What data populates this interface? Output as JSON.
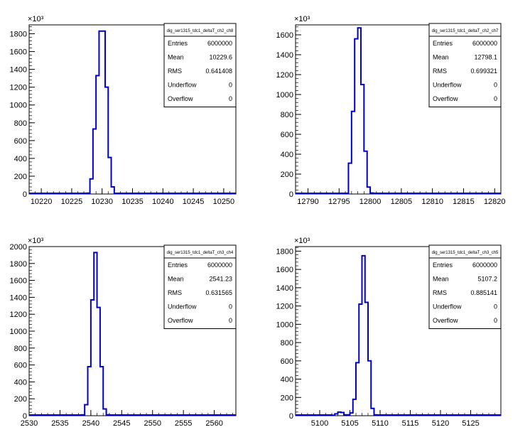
{
  "chart_data": [
    {
      "type": "histogram",
      "title": "dig_ser1315_tdc1_deltaT_ch2_ch8",
      "exponent_label": "×10³",
      "xlim": [
        10218,
        10252
      ],
      "ylim": [
        0,
        1900
      ],
      "x_ticks": [
        "10220",
        "10225",
        "10230",
        "10235",
        "10240",
        "10245",
        "10250"
      ],
      "x_tick_values": [
        10220,
        10225,
        10230,
        10235,
        10240,
        10245,
        10250
      ],
      "y_ticks": [
        "0",
        "200",
        "400",
        "600",
        "800",
        "1000",
        "1200",
        "1400",
        "1600",
        "1800"
      ],
      "y_tick_values": [
        0,
        200,
        400,
        600,
        800,
        1000,
        1200,
        1400,
        1600,
        1800
      ],
      "bin_edges": [
        10227.5,
        10228,
        10228.5,
        10229,
        10229.5,
        10230,
        10230.5,
        10231,
        10231.5,
        10232
      ],
      "bin_values": [
        10,
        170,
        730,
        1330,
        1830,
        1830,
        1200,
        410,
        80
      ],
      "stats": [
        {
          "label": "Entries",
          "value": "6000000"
        },
        {
          "label": "Mean",
          "value": "10229.6"
        },
        {
          "label": "RMS",
          "value": "0.641408"
        },
        {
          "label": "Underflow",
          "value": "0"
        },
        {
          "label": "Overflow",
          "value": "0"
        }
      ]
    },
    {
      "type": "histogram",
      "title": "dig_ser1315_tdc1_deltaT_ch2_ch7",
      "exponent_label": "×10³",
      "xlim": [
        12788,
        12821
      ],
      "ylim": [
        0,
        1700
      ],
      "x_ticks": [
        "12790",
        "12795",
        "12800",
        "12805",
        "12810",
        "12815",
        "12820"
      ],
      "x_tick_values": [
        12790,
        12795,
        12800,
        12805,
        12810,
        12815,
        12820
      ],
      "y_ticks": [
        "0",
        "200",
        "400",
        "600",
        "800",
        "1000",
        "1200",
        "1400",
        "1600"
      ],
      "y_tick_values": [
        0,
        200,
        400,
        600,
        800,
        1000,
        1200,
        1400,
        1600
      ],
      "bin_edges": [
        12796.5,
        12797,
        12797.5,
        12798,
        12798.5,
        12799,
        12799.5,
        12800,
        12800.5
      ],
      "bin_values": [
        310,
        830,
        1560,
        1670,
        1100,
        430,
        70,
        10
      ],
      "stats": [
        {
          "label": "Entries",
          "value": "6000000"
        },
        {
          "label": "Mean",
          "value": "12798.1"
        },
        {
          "label": "RMS",
          "value": "0.699321"
        },
        {
          "label": "Underflow",
          "value": "0"
        },
        {
          "label": "Overflow",
          "value": "0"
        }
      ]
    },
    {
      "type": "histogram",
      "title": "dig_ser1315_tdc1_deltaT_ch3_ch4",
      "exponent_label": "×10³",
      "xlim": [
        2530,
        2563.5
      ],
      "ylim": [
        0,
        2000
      ],
      "x_ticks": [
        "2530",
        "2535",
        "2540",
        "2545",
        "2550",
        "2555",
        "2560"
      ],
      "x_tick_values": [
        2530,
        2535,
        2540,
        2545,
        2550,
        2555,
        2560
      ],
      "y_ticks": [
        "0",
        "200",
        "400",
        "600",
        "800",
        "1000",
        "1200",
        "1400",
        "1600",
        "1800",
        "2000"
      ],
      "y_tick_values": [
        0,
        200,
        400,
        600,
        800,
        1000,
        1200,
        1400,
        1600,
        1800,
        2000
      ],
      "bin_edges": [
        2538.5,
        2539,
        2539.5,
        2540,
        2540.5,
        2541,
        2541.5,
        2542,
        2542.5,
        2543
      ],
      "bin_values": [
        10,
        130,
        580,
        1370,
        1930,
        1280,
        580,
        80,
        10
      ],
      "stats": [
        {
          "label": "Entries",
          "value": "6000000"
        },
        {
          "label": "Mean",
          "value": "2541.23"
        },
        {
          "label": "RMS",
          "value": "0.631565"
        },
        {
          "label": "Underflow",
          "value": "0"
        },
        {
          "label": "Overflow",
          "value": "0"
        }
      ]
    },
    {
      "type": "histogram",
      "title": "dig_ser1315_tdc1_deltaT_ch3_ch5",
      "exponent_label": "×10³",
      "xlim": [
        5096,
        5130
      ],
      "ylim": [
        0,
        1850
      ],
      "x_ticks": [
        "5100",
        "5105",
        "5110",
        "5115",
        "5120",
        "5125"
      ],
      "x_tick_values": [
        5100,
        5105,
        5110,
        5115,
        5120,
        5125
      ],
      "y_ticks": [
        "0",
        "200",
        "400",
        "600",
        "800",
        "1000",
        "1200",
        "1400",
        "1600",
        "1800"
      ],
      "y_tick_values": [
        0,
        200,
        400,
        600,
        800,
        1000,
        1200,
        1400,
        1600,
        1800
      ],
      "bin_edges": [
        5102,
        5102.5,
        5103,
        5103.5,
        5104,
        5104.5,
        5105,
        5105.5,
        5106,
        5106.5,
        5107,
        5107.5,
        5108,
        5108.5,
        5109,
        5109.5
      ],
      "bin_values": [
        5,
        20,
        40,
        35,
        10,
        10,
        30,
        180,
        580,
        1220,
        1750,
        1240,
        600,
        80,
        10
      ],
      "stats": [
        {
          "label": "Entries",
          "value": "6000000"
        },
        {
          "label": "Mean",
          "value": "5107.2"
        },
        {
          "label": "RMS",
          "value": "0.885141"
        },
        {
          "label": "Underflow",
          "value": "0"
        },
        {
          "label": "Overflow",
          "value": "0"
        }
      ]
    }
  ]
}
